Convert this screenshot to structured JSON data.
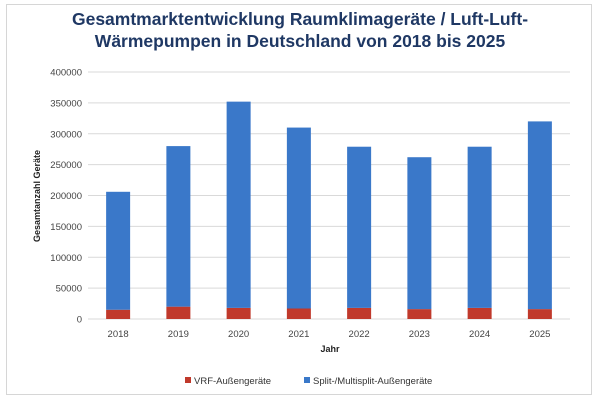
{
  "chart_data": {
    "type": "bar",
    "stacked": true,
    "title_line1": "Gesamtmarktentwicklung Raumklimageräte / Luft-Luft-",
    "title_line2": "Wärmepumpen in Deutschland von 2018 bis 2025",
    "xlabel": "Jahr",
    "ylabel": "Gesamtanzahl Geräte",
    "ylim": [
      0,
      400000
    ],
    "yticks": [
      0,
      50000,
      100000,
      150000,
      200000,
      250000,
      300000,
      350000,
      400000
    ],
    "categories": [
      "2018",
      "2019",
      "2020",
      "2021",
      "2022",
      "2023",
      "2024",
      "2025"
    ],
    "series": [
      {
        "name": "VRF-Außengeräte",
        "color": "#c0392b",
        "values": [
          15000,
          20000,
          18000,
          17000,
          18000,
          16000,
          18000,
          16000
        ]
      },
      {
        "name": "Split-/Multisplit-Außengeräte",
        "color": "#3a78c9",
        "values": [
          191000,
          260000,
          334000,
          293000,
          261000,
          246000,
          261000,
          304000
        ]
      }
    ],
    "grid": true,
    "legend_position": "bottom"
  }
}
